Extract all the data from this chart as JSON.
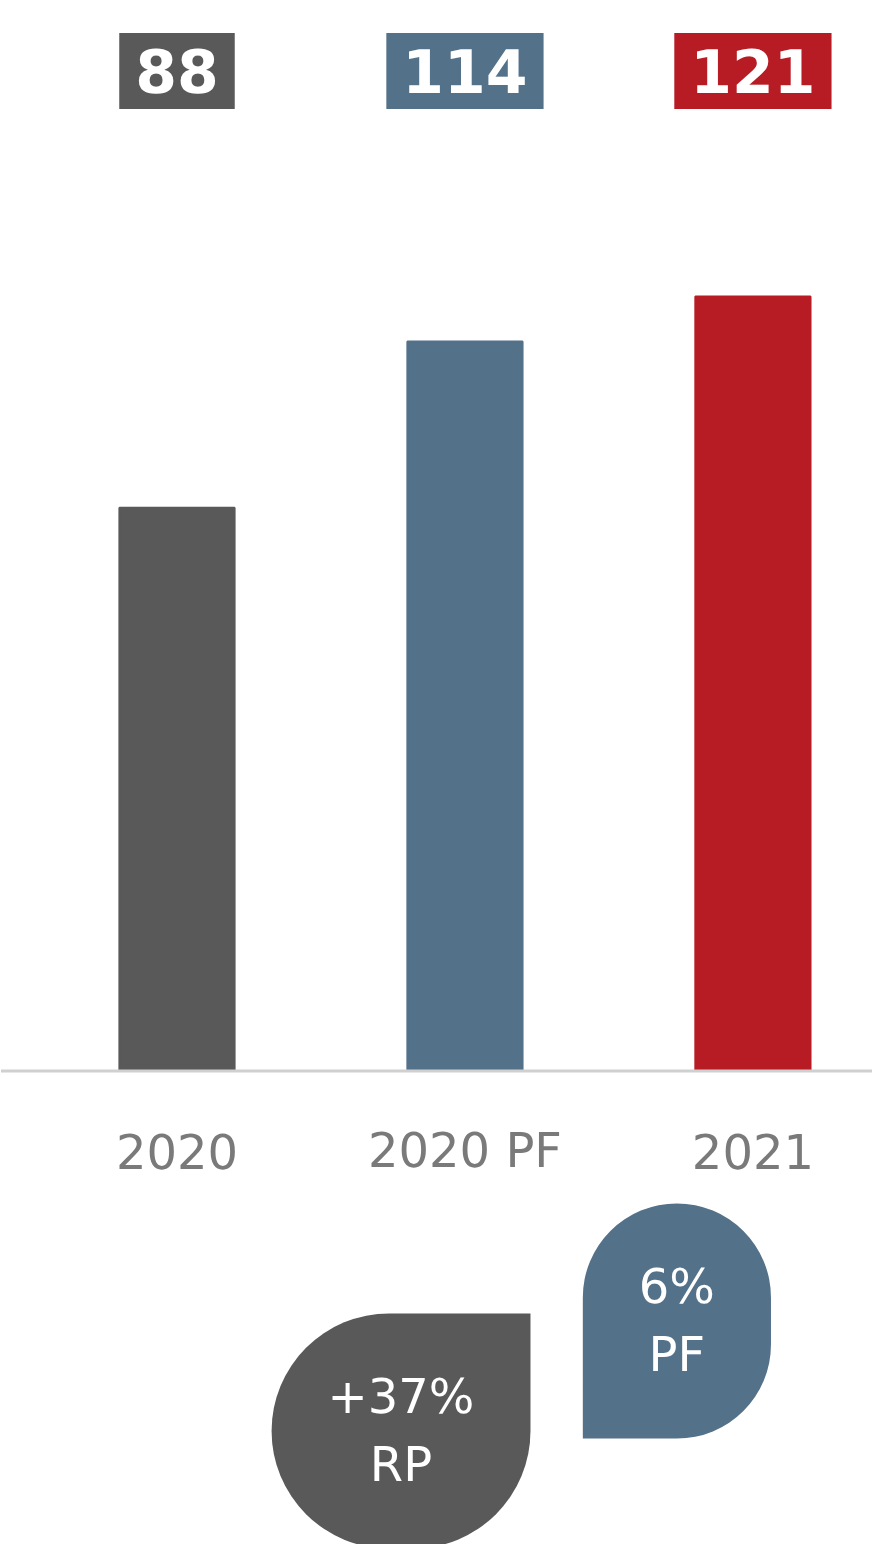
{
  "chart_data": {
    "type": "bar",
    "categories": [
      "2020",
      "2020 PF",
      "2021"
    ],
    "values": [
      88,
      114,
      121
    ],
    "colors": [
      "#595959",
      "#537189",
      "#b71c24"
    ],
    "data_labels": true,
    "tick_labels": "x",
    "grid": false,
    "annotations": [
      "+37%\nRP",
      "6%\nPF"
    ]
  }
}
